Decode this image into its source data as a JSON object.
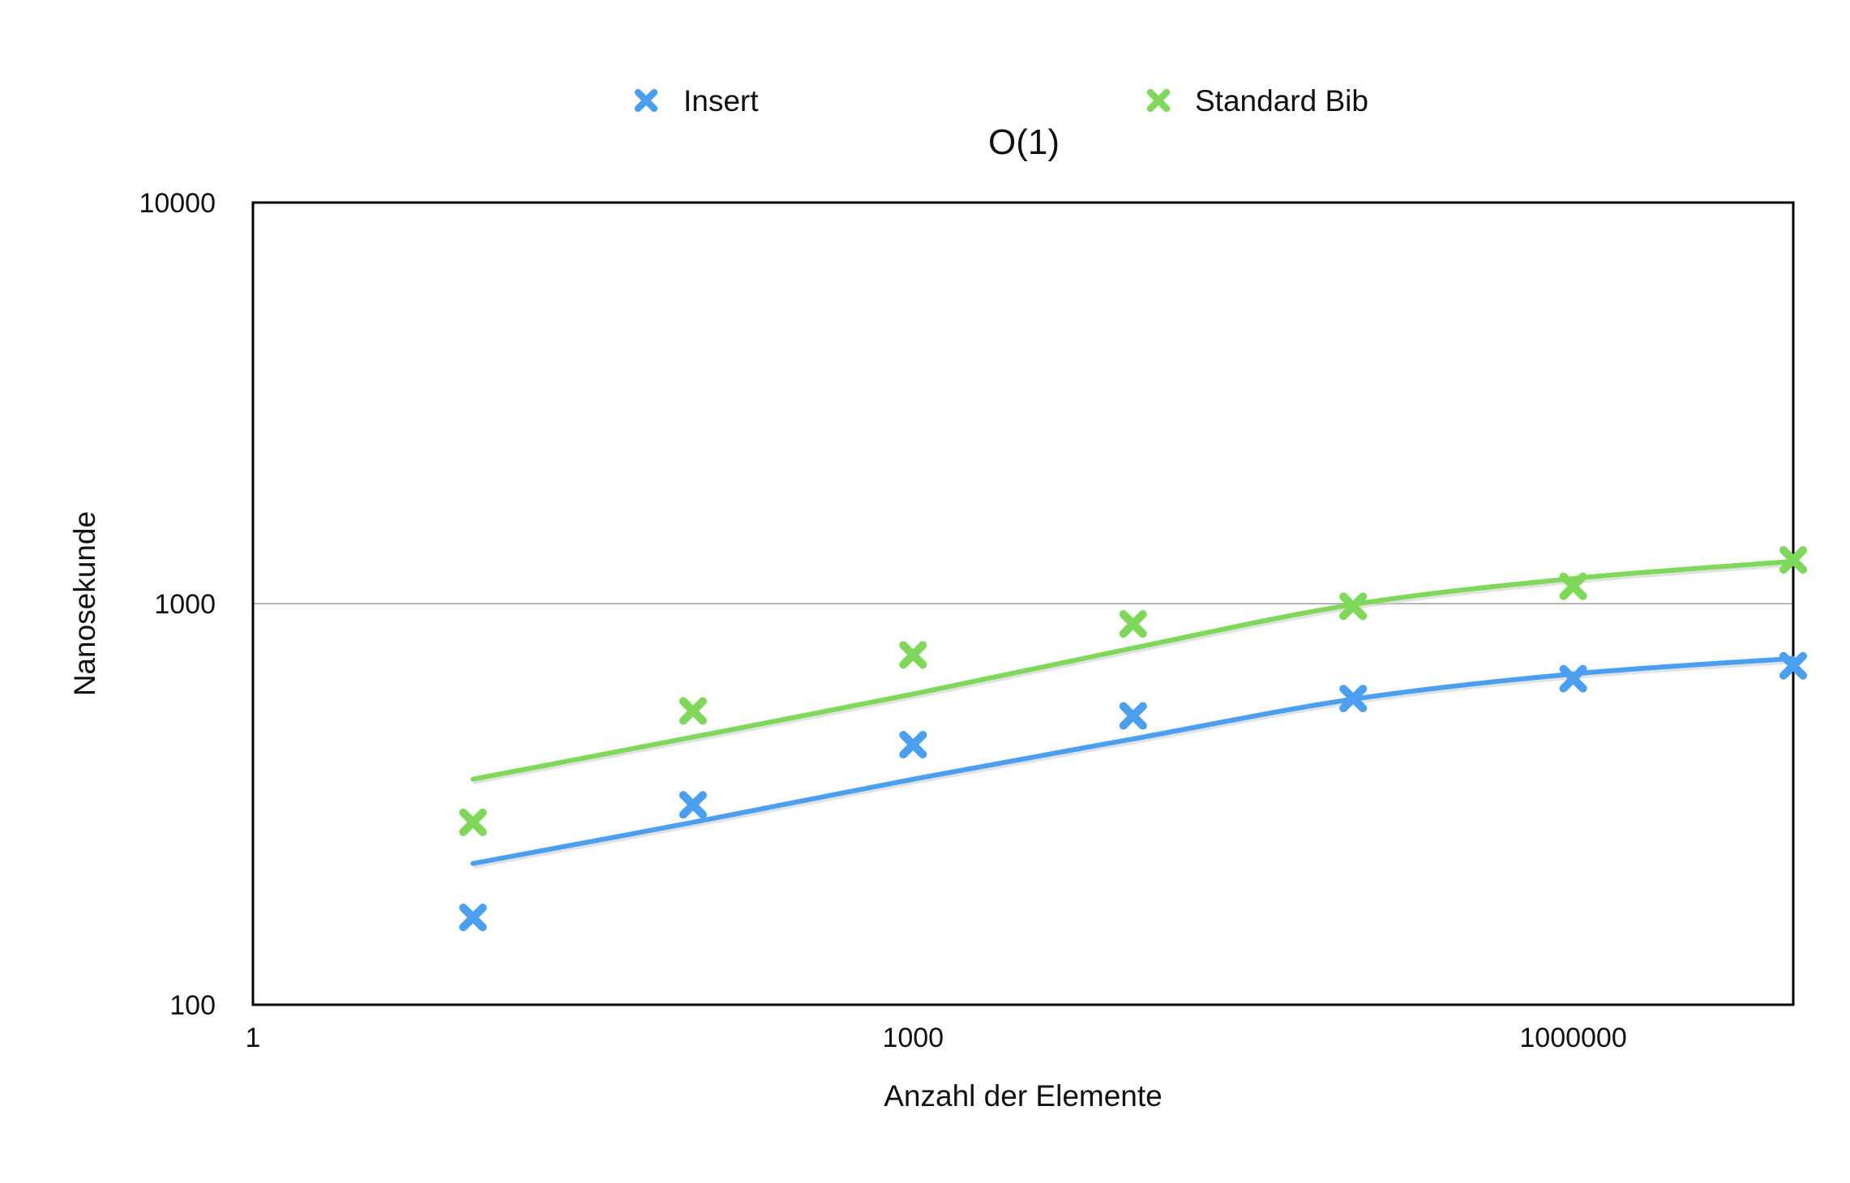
{
  "chart_data": {
    "type": "scatter",
    "title": "O(1)",
    "xlabel": "Anzahl der Elemente",
    "ylabel": "Nanosekunde",
    "x_scale": "log",
    "y_scale": "log",
    "xlim": [
      1,
      10000000
    ],
    "ylim": [
      100,
      10000
    ],
    "x_ticks": [
      "1",
      "1000",
      "1000000"
    ],
    "y_ticks": [
      "100",
      "1000",
      "10000"
    ],
    "grid": "horizontal",
    "legend_position": "top",
    "series": [
      {
        "name": "Insert",
        "color": "#4a9ff0",
        "marker": "x-icon",
        "x": [
          10,
          100,
          1000,
          10000,
          100000,
          1000000,
          10000000
        ],
        "y": [
          165,
          315,
          445,
          525,
          580,
          650,
          700
        ],
        "trend": {
          "x": [
            10,
            100,
            1000,
            10000,
            100000,
            1000000,
            10000000
          ],
          "y": [
            225,
            285,
            365,
            460,
            578,
            668,
            730
          ]
        }
      },
      {
        "name": "Standard Bib",
        "color": "#7ed85a",
        "marker": "x-icon",
        "x": [
          10,
          100,
          1000,
          10000,
          100000,
          1000000,
          10000000
        ],
        "y": [
          285,
          540,
          745,
          890,
          985,
          1105,
          1285
        ],
        "trend": {
          "x": [
            10,
            100,
            1000,
            10000,
            100000,
            1000000,
            10000000
          ],
          "y": [
            365,
            465,
            595,
            775,
            995,
            1155,
            1275
          ]
        }
      }
    ]
  }
}
